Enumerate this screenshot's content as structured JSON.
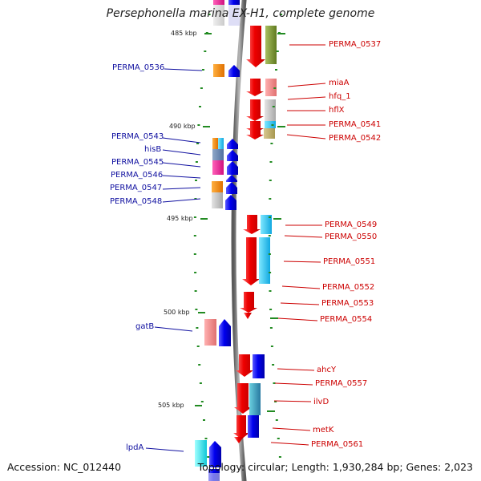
{
  "title": "Persephonella marina EX-H1, complete genome",
  "footer": {
    "accession": "Accession: NC_012440",
    "topology": "Topology: circular; Length: 1,930,284 bp; Genes: 2,023"
  },
  "scale_marks": [
    "485 kbp",
    "490 kbp",
    "495 kbp",
    "500 kbp",
    "505 kbp"
  ],
  "right_genes": [
    "PERMA_0537",
    "miaA",
    "hfq_1",
    "hflX",
    "PERMA_0541",
    "PERMA_0542",
    "PERMA_0549",
    "PERMA_0550",
    "PERMA_0551",
    "PERMA_0552",
    "PERMA_0553",
    "PERMA_0554",
    "ahcY",
    "PERMA_0557",
    "ilvD",
    "metK",
    "PERMA_0561"
  ],
  "left_genes": [
    "PERMA_0536",
    "PERMA_0543",
    "hisB",
    "PERMA_0545",
    "PERMA_0546",
    "PERMA_0547",
    "PERMA_0548",
    "gatB",
    "lpdA"
  ],
  "colors": {
    "forward_strand": "#ee0000",
    "reverse_strand": "#0000ee",
    "backbone": "#888888",
    "tick": "#228b22",
    "right_label": "#cc0000",
    "left_label": "#1010a0"
  }
}
